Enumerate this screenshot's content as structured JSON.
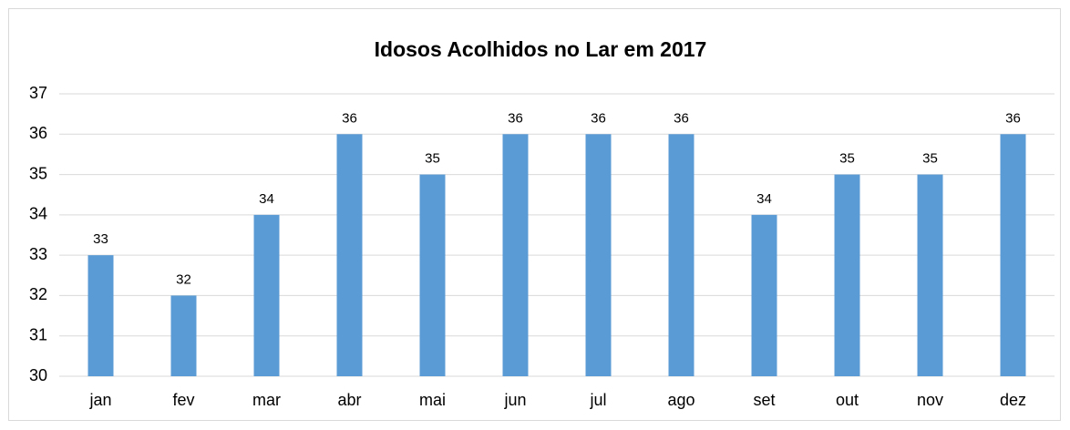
{
  "chart_data": {
    "type": "bar",
    "title": "Idosos Acolhidos no Lar em 2017",
    "categories": [
      "jan",
      "fev",
      "mar",
      "abr",
      "mai",
      "jun",
      "jul",
      "ago",
      "set",
      "out",
      "nov",
      "dez"
    ],
    "values": [
      33,
      32,
      34,
      36,
      35,
      36,
      36,
      36,
      34,
      35,
      35,
      36
    ],
    "color": "#5b9bd5",
    "ylim": [
      30,
      37
    ],
    "yticks": [
      30,
      31,
      32,
      33,
      34,
      35,
      36,
      37
    ],
    "grid": true
  }
}
